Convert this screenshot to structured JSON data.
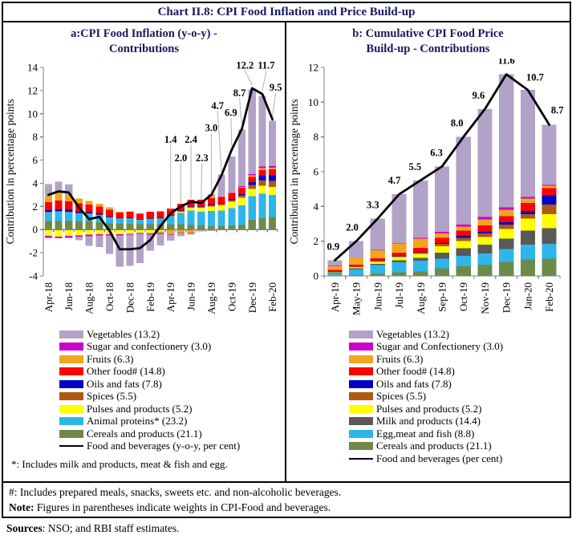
{
  "title": "Chart II.8: CPI Food Inflation and Price Build-up",
  "panels": {
    "a": {
      "title_line1": "a:CPI Food Inflation (y-o-y) -",
      "title_line2": "Contributions",
      "footnote": "*: Includes milk and products, meat & fish and egg."
    },
    "b": {
      "title_line1": "b: Cumulative CPI Food Price",
      "title_line2": "Build-up - Contributions"
    }
  },
  "notes": {
    "note1": "#: Includes prepared meals, snacks, sweets etc. and non-alcoholic beverages.",
    "note2_prefix": "Note:",
    "note2_text": " Figures in parentheses indicate weights in CPI-Food and beverages."
  },
  "sources_prefix": "Sources",
  "sources_text": ": NSO; and RBI staff estimates.",
  "accent_colors": {
    "title_navy": "#17175f",
    "vegetables": "#b3a2c7",
    "sugar": "#cc00cc",
    "fruits": "#efa51e",
    "other_food": "#ff0000",
    "oils_fats": "#0000c8",
    "spices": "#b05a10",
    "pulses": "#ffff00",
    "animal_blue": "#2eb6ea",
    "cereals": "#6d8a4a",
    "milk_grey": "#595959",
    "line": "#000000"
  },
  "chart_data": [
    {
      "id": "chart-a",
      "type": "bar",
      "subtype": "stacked-bar-with-line",
      "title": "a:CPI Food Inflation (y-o-y) - Contributions",
      "ylabel": "Contribution in percentage points",
      "ylim": [
        -4,
        14
      ],
      "yticks": [
        -4,
        -2,
        0,
        2,
        4,
        6,
        8,
        10,
        12,
        14
      ],
      "xlabel_every": 2,
      "months": [
        "Apr-18",
        "May-18",
        "Jun-18",
        "Jul-18",
        "Aug-18",
        "Sep-18",
        "Oct-18",
        "Nov-18",
        "Dec-18",
        "Jan-19",
        "Feb-19",
        "Mar-19",
        "Apr-19",
        "May-19",
        "Jun-19",
        "Jul-19",
        "Aug-19",
        "Sep-19",
        "Oct-19",
        "Nov-19",
        "Dec-19",
        "Jan-20",
        "Feb-20"
      ],
      "series": [
        {
          "name": "Cereals and products (21.1)",
          "color": "#6d8a4a",
          "values": [
            0.75,
            0.75,
            0.75,
            0.7,
            0.7,
            0.65,
            0.55,
            0.5,
            0.5,
            0.45,
            0.45,
            0.45,
            0.45,
            0.45,
            0.4,
            0.35,
            0.3,
            0.3,
            0.35,
            0.4,
            0.85,
            1.0,
            1.1
          ]
        },
        {
          "name": "Animal proteins* (23.2)",
          "color": "#2eb6ea",
          "values": [
            0.75,
            0.8,
            0.75,
            0.7,
            0.65,
            0.6,
            0.5,
            0.45,
            0.45,
            0.4,
            0.45,
            0.5,
            0.7,
            1.0,
            1.25,
            1.2,
            1.3,
            1.35,
            1.5,
            1.7,
            2.05,
            2.1,
            1.9
          ]
        },
        {
          "name": "Pulses and products  (5.2)",
          "color": "#ffff00",
          "values": [
            -0.55,
            -0.6,
            -0.55,
            -0.5,
            -0.45,
            -0.4,
            -0.4,
            -0.4,
            -0.35,
            -0.3,
            -0.25,
            -0.15,
            -0.05,
            0.1,
            0.25,
            0.35,
            0.4,
            0.45,
            0.55,
            0.65,
            0.6,
            0.7,
            0.7
          ]
        },
        {
          "name": "Spices  (5.5)",
          "color": "#b05a10",
          "values": [
            0.05,
            0.05,
            0.05,
            0.05,
            0.05,
            0.04,
            0.04,
            0.03,
            0.03,
            0.03,
            0.04,
            0.04,
            0.04,
            0.05,
            0.06,
            0.08,
            0.1,
            0.12,
            0.15,
            0.2,
            0.35,
            0.45,
            0.5
          ]
        },
        {
          "name": "Oils and fats (7.8)",
          "color": "#0000c8",
          "values": [
            0.12,
            0.15,
            0.15,
            0.12,
            0.12,
            0.1,
            0.08,
            0.05,
            0.05,
            0.04,
            0.04,
            0.03,
            0.02,
            0.03,
            0.03,
            0.04,
            0.05,
            0.06,
            0.08,
            0.1,
            0.25,
            0.4,
            0.5
          ]
        },
        {
          "name": "Other food# (14.8)",
          "color": "#ff0000",
          "values": [
            0.7,
            0.75,
            0.75,
            0.7,
            0.65,
            0.6,
            0.55,
            0.45,
            0.5,
            0.45,
            0.55,
            0.55,
            0.6,
            0.6,
            0.6,
            0.55,
            0.55,
            0.5,
            0.5,
            0.55,
            0.45,
            0.5,
            0.5
          ]
        },
        {
          "name": "Fruits (6.3)",
          "color": "#efa51e",
          "values": [
            0.6,
            0.7,
            0.55,
            0.4,
            0.3,
            0.25,
            0.2,
            0.05,
            0.03,
            0.02,
            -0.1,
            -0.15,
            -0.35,
            -0.3,
            -0.3,
            0.0,
            0.3,
            0.05,
            0.05,
            0.1,
            0.15,
            0.15,
            0.15
          ]
        },
        {
          "name": "Sugar and confectionery (3.0)",
          "color": "#cc00cc",
          "values": [
            -0.15,
            -0.15,
            -0.15,
            -0.12,
            -0.12,
            -0.1,
            -0.1,
            -0.1,
            -0.1,
            -0.08,
            -0.08,
            -0.06,
            -0.05,
            -0.04,
            -0.02,
            0.02,
            0.02,
            0.02,
            0.03,
            0.04,
            0.1,
            0.15,
            0.15
          ]
        },
        {
          "name": "Vegetables (13.2)",
          "color": "#b3a2c7",
          "values": [
            0.95,
            0.95,
            0.9,
            -0.3,
            -0.85,
            -1.0,
            -1.6,
            -2.7,
            -2.7,
            -2.5,
            -1.4,
            -1.0,
            -0.5,
            -0.25,
            -0.1,
            -0.15,
            -0.12,
            1.9,
            3.1,
            4.9,
            7.3,
            6.1,
            3.9
          ]
        }
      ],
      "line": {
        "name": "Food and beverages (y-o-y, per cent)",
        "color": "#000000",
        "values": [
          3.0,
          3.3,
          3.2,
          1.9,
          0.9,
          1.1,
          -0.1,
          -1.7,
          -1.7,
          -1.6,
          -0.9,
          0.3,
          1.4,
          2.0,
          2.4,
          2.3,
          3.0,
          4.7,
          6.9,
          8.7,
          12.2,
          11.7,
          9.5
        ]
      },
      "annotations": {
        "indices": [
          12,
          13,
          14,
          15,
          16,
          17,
          18,
          19,
          20,
          21,
          22
        ],
        "labels": [
          "1.4",
          "2.0",
          "2.4",
          "2.3",
          "3.0",
          "4.7",
          "6.9",
          "8.7",
          "12.2",
          "11.7",
          "9.5"
        ]
      }
    },
    {
      "id": "chart-b",
      "type": "bar",
      "subtype": "stacked-bar-with-line",
      "title": "b: Cumulative CPI Food Price Build-up - Contributions",
      "ylabel": "Contribution in percentage points",
      "ylim": [
        0,
        12
      ],
      "yticks": [
        0,
        2,
        4,
        6,
        8,
        10,
        12
      ],
      "xlabel_every": 1,
      "months": [
        "Apr-19",
        "May-19",
        "Jun-19",
        "Jul-19",
        "Aug-19",
        "Sep-19",
        "Oct-19",
        "Nov-19",
        "Dec-19",
        "Jan-20",
        "Feb-20"
      ],
      "series": [
        {
          "name": "Cereals and products (21.1)",
          "color": "#6d8a4a",
          "values": [
            0.02,
            0.05,
            0.13,
            0.2,
            0.25,
            0.45,
            0.55,
            0.65,
            0.8,
            0.95,
            1.0
          ]
        },
        {
          "name": "Egg,meat and fish (8.8)",
          "color": "#2eb6ea",
          "values": [
            0.15,
            0.33,
            0.5,
            0.58,
            0.62,
            0.55,
            0.6,
            0.65,
            0.75,
            0.85,
            0.85
          ]
        },
        {
          "name": "Milk and products (14.4)",
          "color": "#595959",
          "values": [
            0.03,
            0.05,
            0.07,
            0.12,
            0.16,
            0.35,
            0.45,
            0.5,
            0.6,
            0.8,
            0.9
          ]
        },
        {
          "name": "Pulses and products (5.2)",
          "color": "#ffff00",
          "values": [
            0.05,
            0.08,
            0.12,
            0.18,
            0.25,
            0.35,
            0.4,
            0.45,
            0.55,
            0.7,
            0.8
          ]
        },
        {
          "name": "Spices (5.5)",
          "color": "#b05a10",
          "values": [
            0.01,
            0.02,
            0.03,
            0.04,
            0.05,
            0.15,
            0.2,
            0.2,
            0.25,
            0.25,
            0.55
          ]
        },
        {
          "name": "Oils and fats (7.8)",
          "color": "#0000c8",
          "values": [
            0.01,
            0.01,
            0.02,
            0.03,
            0.04,
            0.05,
            0.1,
            0.1,
            0.15,
            0.2,
            0.55
          ]
        },
        {
          "name": "Other food# (14.8)",
          "color": "#ff0000",
          "values": [
            0.07,
            0.1,
            0.15,
            0.2,
            0.25,
            0.3,
            0.3,
            0.35,
            0.35,
            0.45,
            0.4
          ]
        },
        {
          "name": "Fruits (6.3)",
          "color": "#efa51e",
          "values": [
            0.25,
            0.4,
            0.45,
            0.5,
            0.52,
            0.25,
            0.25,
            0.35,
            0.35,
            0.25,
            0.15
          ]
        },
        {
          "name": "Sugar and Confectionery (3.0)",
          "color": "#cc00cc",
          "values": [
            0.01,
            0.01,
            0.02,
            0.03,
            0.05,
            0.1,
            0.1,
            0.15,
            0.15,
            0.1,
            0.05
          ]
        },
        {
          "name": "Vegetables (13.2)",
          "color": "#b3a2c7",
          "values": [
            0.3,
            0.95,
            1.81,
            2.82,
            3.31,
            3.75,
            5.05,
            6.2,
            7.65,
            6.15,
            3.45
          ]
        }
      ],
      "line": {
        "name": "Food and beverages (per cent)",
        "color": "#000000",
        "values": [
          0.9,
          2.0,
          3.3,
          4.7,
          5.5,
          6.3,
          8.0,
          9.6,
          11.6,
          10.7,
          8.7
        ]
      },
      "annotations": {
        "indices": [
          0,
          1,
          2,
          3,
          4,
          5,
          6,
          7,
          8,
          9,
          10
        ],
        "labels": [
          "0.9",
          "2.0",
          "3.3",
          "4.7",
          "5.5",
          "6.3",
          "8.0",
          "9.6",
          "11.6",
          "10.7",
          "8.7"
        ]
      }
    }
  ]
}
